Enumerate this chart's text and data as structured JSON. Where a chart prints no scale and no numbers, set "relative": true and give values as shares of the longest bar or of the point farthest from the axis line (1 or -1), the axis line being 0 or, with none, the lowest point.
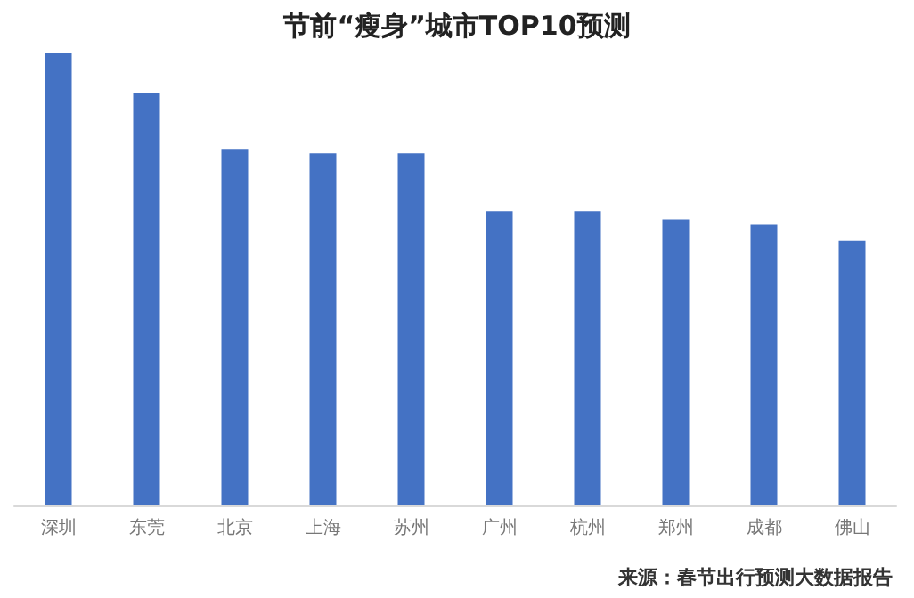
{
  "chart_data": {
    "type": "bar",
    "title": "节前“瘦身”城市TOP10预测",
    "categories": [
      "深圳",
      "东莞",
      "北京",
      "上海",
      "苏州",
      "广州",
      "杭州",
      "郑州",
      "成都",
      "佛山"
    ],
    "values": [
      1,
      0.913,
      0.789,
      0.779,
      0.779,
      0.651,
      0.651,
      0.633,
      0.621,
      0.585
    ],
    "color": "#4472c4",
    "relative": true,
    "annotations": [
      "来源：春节出行预测大数据报告"
    ]
  }
}
